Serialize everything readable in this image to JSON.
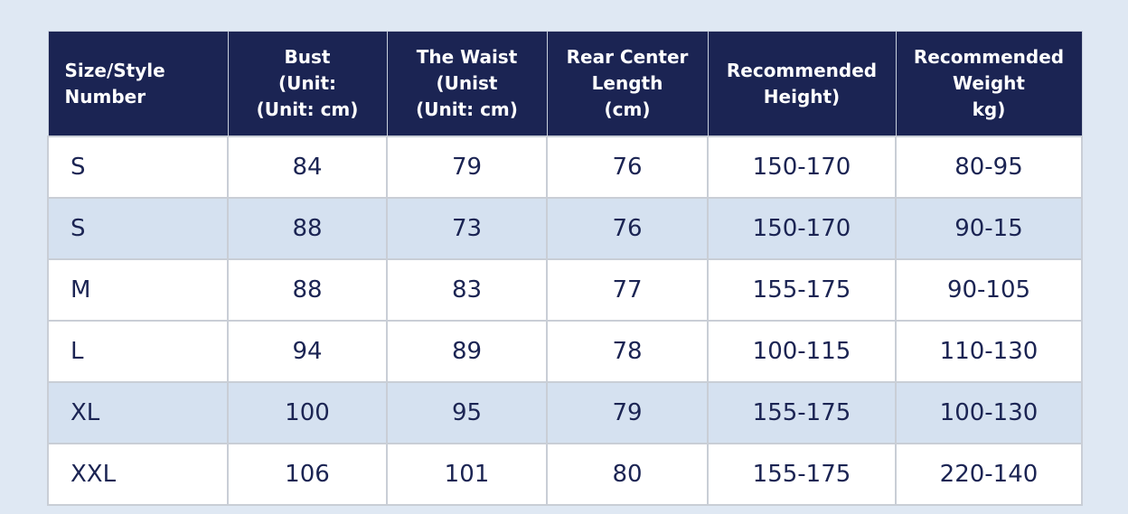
{
  "table": {
    "header": [
      [
        "Size/Style",
        "Number"
      ],
      [
        "Bust",
        "(Unit:",
        "(Unit: cm)"
      ],
      [
        "The Waist",
        "(Unist",
        "(Unit: cm)"
      ],
      [
        "Rear Center",
        "Length",
        "(cm)"
      ],
      [
        "Recommended",
        "Height)"
      ],
      [
        "Recommended",
        "Weight",
        "kg)"
      ]
    ],
    "rows": [
      [
        "S",
        "84",
        "79",
        "76",
        "150-170",
        "80-95"
      ],
      [
        "S",
        "88",
        "73",
        "76",
        "150-170",
        "90-15"
      ],
      [
        "M",
        "88",
        "83",
        "77",
        "155-175",
        "90-105"
      ],
      [
        "L",
        "94",
        "89",
        "78",
        "100-115",
        "110-130"
      ],
      [
        "XL",
        "100",
        "95",
        "79",
        "155-175",
        "100-130"
      ],
      [
        "XXL",
        "106",
        "101",
        "80",
        "155-175",
        "220-140"
      ]
    ]
  }
}
